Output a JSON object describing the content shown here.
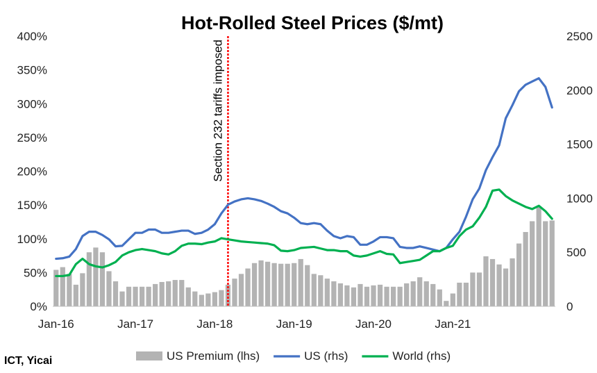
{
  "chart_data": {
    "type": "bar+line",
    "title": "Hot-Rolled Steel Prices ($/mt)",
    "source": "ICT, Yicai",
    "annotation": "Section 232 tariffs imposed",
    "annotation_x": "Mar-18",
    "x_start": "Jan-16",
    "x_ticks": [
      "Jan-16",
      "Jan-17",
      "Jan-18",
      "Jan-19",
      "Jan-20",
      "Jan-21"
    ],
    "y_left": {
      "min": 0,
      "max": 4,
      "ticks": [
        "0%",
        "50%",
        "100%",
        "150%",
        "200%",
        "250%",
        "300%",
        "350%",
        "400%"
      ]
    },
    "y_right": {
      "min": 0,
      "max": 2500,
      "ticks": [
        "0",
        "500",
        "1000",
        "1500",
        "2000",
        "2500"
      ]
    },
    "series": [
      {
        "name": "US Premium (lhs)",
        "type": "bar",
        "axis": "left",
        "color": "#b3b3b3",
        "values": [
          0.54,
          0.58,
          0.48,
          0.32,
          0.49,
          0.8,
          0.87,
          0.8,
          0.52,
          0.37,
          0.22,
          0.29,
          0.29,
          0.29,
          0.29,
          0.33,
          0.36,
          0.37,
          0.39,
          0.39,
          0.28,
          0.22,
          0.17,
          0.19,
          0.21,
          0.24,
          0.32,
          0.41,
          0.48,
          0.56,
          0.64,
          0.68,
          0.66,
          0.64,
          0.63,
          0.63,
          0.64,
          0.7,
          0.61,
          0.48,
          0.46,
          0.41,
          0.37,
          0.34,
          0.31,
          0.28,
          0.33,
          0.29,
          0.31,
          0.32,
          0.29,
          0.29,
          0.29,
          0.34,
          0.37,
          0.43,
          0.37,
          0.33,
          0.25,
          0.08,
          0.19,
          0.35,
          0.35,
          0.5,
          0.5,
          0.74,
          0.7,
          0.62,
          0.56,
          0.71,
          0.93,
          1.1,
          1.26,
          1.48,
          1.26,
          1.27
        ]
      },
      {
        "name": "US (rhs)",
        "type": "line",
        "axis": "right",
        "color": "#4472c4",
        "values": [
          440,
          445,
          460,
          530,
          650,
          690,
          690,
          660,
          620,
          555,
          560,
          620,
          680,
          680,
          710,
          710,
          680,
          680,
          690,
          700,
          700,
          670,
          680,
          710,
          760,
          860,
          940,
          970,
          990,
          1000,
          990,
          975,
          950,
          920,
          880,
          860,
          820,
          770,
          760,
          770,
          760,
          700,
          650,
          630,
          650,
          640,
          570,
          570,
          600,
          640,
          640,
          630,
          550,
          540,
          540,
          555,
          540,
          525,
          510,
          540,
          620,
          690,
          830,
          990,
          1090,
          1260,
          1380,
          1490,
          1740,
          1860,
          1990,
          2050,
          2080,
          2110,
          2030,
          1840
        ]
      },
      {
        "name": "World (rhs)",
        "type": "line",
        "axis": "right",
        "color": "#00b050",
        "values": [
          280,
          280,
          290,
          390,
          440,
          390,
          370,
          360,
          380,
          410,
          470,
          500,
          520,
          530,
          520,
          510,
          490,
          480,
          510,
          560,
          580,
          580,
          575,
          590,
          600,
          630,
          620,
          610,
          600,
          595,
          590,
          585,
          580,
          565,
          515,
          510,
          520,
          540,
          545,
          550,
          535,
          520,
          520,
          510,
          510,
          470,
          460,
          470,
          490,
          510,
          485,
          480,
          400,
          410,
          420,
          430,
          470,
          510,
          510,
          540,
          560,
          650,
          710,
          740,
          820,
          920,
          1070,
          1080,
          1020,
          980,
          950,
          920,
          900,
          930,
          880,
          810
        ]
      }
    ],
    "legend_position": "bottom",
    "grid": false
  }
}
